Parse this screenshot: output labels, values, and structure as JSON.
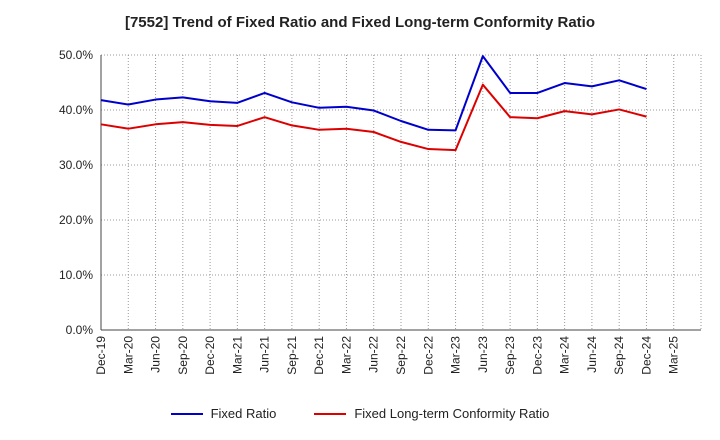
{
  "chart_data": {
    "type": "line",
    "title": "[7552]  Trend of Fixed Ratio and Fixed Long-term Conformity Ratio",
    "categories": [
      "Dec-19",
      "Mar-20",
      "Jun-20",
      "Sep-20",
      "Dec-20",
      "Mar-21",
      "Jun-21",
      "Sep-21",
      "Dec-21",
      "Mar-22",
      "Jun-22",
      "Sep-22",
      "Dec-22",
      "Mar-23",
      "Jun-23",
      "Sep-23",
      "Dec-23",
      "Mar-24",
      "Jun-24",
      "Sep-24",
      "Dec-24",
      "Mar-25"
    ],
    "series": [
      {
        "name": "Fixed Ratio",
        "color": "#0000cc",
        "values": [
          41.8,
          41.0,
          41.9,
          42.3,
          41.6,
          41.3,
          43.1,
          41.4,
          40.4,
          40.6,
          39.9,
          38.0,
          36.4,
          36.3,
          49.8,
          43.1,
          43.1,
          44.9,
          44.3,
          45.4,
          43.8,
          null
        ]
      },
      {
        "name": "Fixed Long-term Conformity Ratio",
        "color": "#dd0000",
        "values": [
          37.4,
          36.6,
          37.4,
          37.8,
          37.3,
          37.1,
          38.7,
          37.2,
          36.4,
          36.6,
          36.0,
          34.2,
          32.9,
          32.7,
          44.6,
          38.7,
          38.5,
          39.8,
          39.2,
          40.1,
          38.8,
          null
        ]
      }
    ],
    "ylim": [
      0,
      50
    ],
    "yticks": [
      "0.0%",
      "10.0%",
      "20.0%",
      "30.0%",
      "40.0%",
      "50.0%"
    ],
    "grid": true,
    "legend_position": "bottom"
  }
}
